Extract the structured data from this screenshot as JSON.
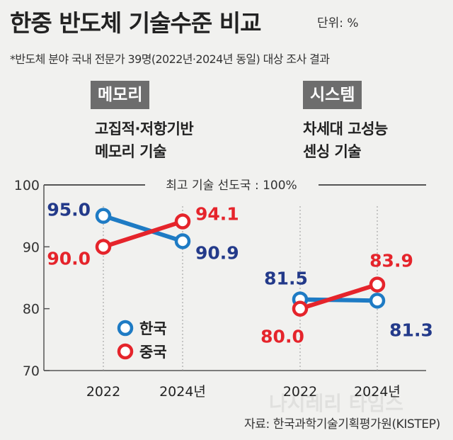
{
  "title": "한중 반도체 기술수준 비교",
  "unit": "단위: %",
  "note": "*반도체 분야 국내 전문가 39명(2022년·2024년 동일) 대상 조사 결과",
  "source": "자료: 한국과학기술기획평가원(KISTEP)",
  "watermark": "나시레리 타임스",
  "colors": {
    "korea": "#233a8a",
    "china": "#e5242b",
    "korea_point": "#1e7bc4"
  },
  "chart_data": {
    "type": "line",
    "ylim": [
      70,
      100
    ],
    "yticks": [
      "70",
      "80",
      "90",
      "100"
    ],
    "reference_label": "최고 기술 선도국 : 100%",
    "legend": [
      {
        "name": "한국",
        "color": "#1e7bc4"
      },
      {
        "name": "중국",
        "color": "#e5242b"
      }
    ],
    "panels": [
      {
        "tag": "메모리",
        "subtitle": [
          "고집적·저항기반",
          "메모리 기술"
        ],
        "x": [
          "2022",
          "2024년"
        ],
        "series": [
          {
            "name": "한국",
            "values": [
              95.0,
              90.9
            ],
            "labels": [
              "95.0",
              "90.9"
            ]
          },
          {
            "name": "중국",
            "values": [
              90.0,
              94.1
            ],
            "labels": [
              "90.0",
              "94.1"
            ]
          }
        ]
      },
      {
        "tag": "시스템",
        "subtitle": [
          "차세대 고성능",
          "센싱 기술"
        ],
        "x": [
          "2022",
          "2024년"
        ],
        "series": [
          {
            "name": "한국",
            "values": [
              81.5,
              81.3
            ],
            "labels": [
              "81.5",
              "81.3"
            ]
          },
          {
            "name": "중국",
            "values": [
              80.0,
              83.9
            ],
            "labels": [
              "80.0",
              "83.9"
            ]
          }
        ]
      }
    ]
  }
}
